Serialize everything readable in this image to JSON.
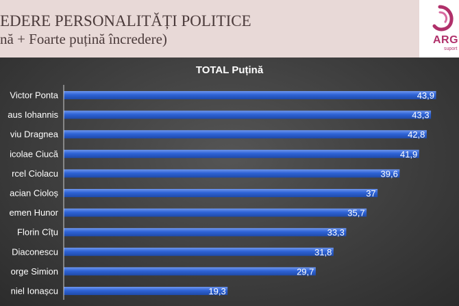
{
  "header": {
    "title": "EDERE PERSONALITĂȚI POLITICE",
    "subtitle": "nă + Foarte puțină încredere)"
  },
  "logo": {
    "text": "ARGU",
    "tagline": "suport"
  },
  "colors": {
    "bar": "#2e63d6",
    "bar_light": "#6f97ee",
    "header_bg": "#e8d9d7",
    "logo_accent": "#b0306a"
  },
  "chart_data": {
    "type": "bar",
    "orientation": "horizontal",
    "title": "TOTAL Puțină",
    "categories": [
      "Victor Ponta",
      "aus Iohannis",
      "viu Dragnea",
      "icolae Ciucă",
      "rcel Ciolacu",
      "acian Cioloș",
      "emen Hunor",
      "Florin Cîțu",
      "Diaconescu",
      "orge Simion",
      "niel Ionașcu"
    ],
    "values": [
      43.9,
      43.3,
      42.8,
      41.9,
      39.6,
      37,
      35.7,
      33.3,
      31.8,
      29.7,
      19.3
    ],
    "value_labels": [
      "43,9",
      "43,3",
      "42,8",
      "41,9",
      "39,6",
      "37",
      "35,7",
      "33,3",
      "31,8",
      "29,7",
      "19,3"
    ],
    "xlim": [
      0,
      46
    ],
    "grid": false,
    "legend": "none"
  }
}
